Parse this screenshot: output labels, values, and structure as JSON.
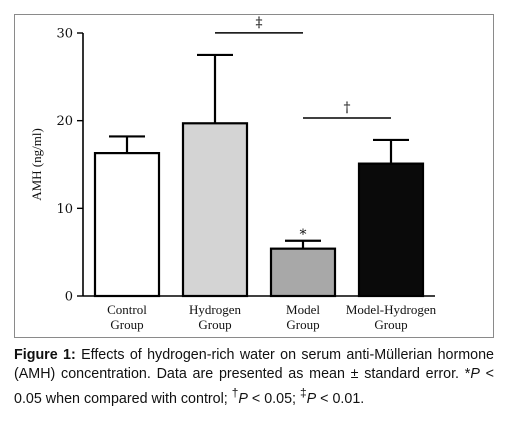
{
  "chart_data": {
    "type": "bar",
    "ylabel": "AMH (ng/ml)",
    "ylim": [
      0,
      30
    ],
    "yticks": [
      "0",
      "10",
      "20",
      "30"
    ],
    "categories": [
      [
        "Control",
        "Group"
      ],
      [
        "Hydrogen",
        "Group"
      ],
      [
        "Model",
        "Group"
      ],
      [
        "Model-Hydrogen",
        "Group"
      ]
    ],
    "values": [
      16.3,
      19.7,
      5.4,
      15.1
    ],
    "errors": [
      1.9,
      7.8,
      0.9,
      2.7
    ],
    "bar_colors": [
      "#ffffff",
      "#d4d4d4",
      "#a8a8a8",
      "#0a0a0a"
    ],
    "bar_annotations": [
      "",
      "",
      "*",
      ""
    ],
    "significance": [
      {
        "label": "‡",
        "from": 1,
        "to": 2
      },
      {
        "label": "†",
        "from": 2,
        "to": 3
      }
    ]
  },
  "caption": {
    "label": "Figure 1:",
    "text": " Effects of hydrogen-rich water on serum anti-Müllerian hormone (AMH) concentration. Data are presented as mean ± standard error. *",
    "p1_var": "P",
    "p1_text": " < 0.05 when compared with control; ",
    "dagger": "†",
    "p2_var": "P",
    "p2_text": " < 0.05; ",
    "ddagger": "‡",
    "p3_var": "P",
    "p3_text": " < 0.01."
  }
}
